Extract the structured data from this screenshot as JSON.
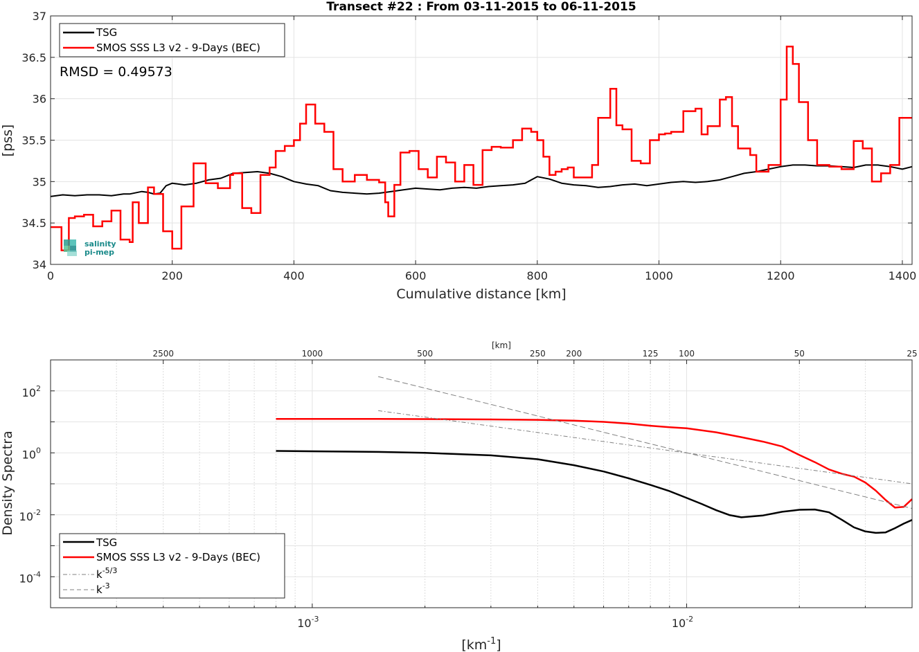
{
  "chart_data": [
    {
      "type": "line",
      "title": "Transect #22 : From 03-11-2015 to 06-11-2015",
      "xlabel": "Cumulative distance [km]",
      "ylabel": "[pss]",
      "xlim": [
        0,
        1416
      ],
      "ylim": [
        34,
        37
      ],
      "xticks": [
        0,
        200,
        400,
        600,
        800,
        1000,
        1200,
        1400
      ],
      "yticks": [
        34,
        34.5,
        35,
        35.5,
        36,
        36.5,
        37
      ],
      "xtick_labels": [
        "0",
        "200",
        "400",
        "600",
        "800",
        "1000",
        "1200",
        "1400"
      ],
      "ytick_labels": [
        "34",
        "34.5",
        "35",
        "35.5",
        "36",
        "36.5",
        "37"
      ],
      "grid": true,
      "legend_position": "top-left",
      "annotation": "RMSD = 0.49573",
      "series": [
        {
          "name": "TSG",
          "color": "#000000",
          "x": [
            0,
            20,
            40,
            60,
            80,
            100,
            120,
            130,
            150,
            160,
            170,
            180,
            190,
            200,
            210,
            220,
            240,
            260,
            280,
            300,
            320,
            340,
            360,
            380,
            400,
            420,
            440,
            450,
            460,
            480,
            500,
            520,
            540,
            560,
            580,
            600,
            620,
            640,
            660,
            680,
            700,
            720,
            740,
            760,
            780,
            800,
            820,
            840,
            860,
            880,
            900,
            920,
            940,
            960,
            980,
            1000,
            1020,
            1040,
            1060,
            1080,
            1100,
            1120,
            1140,
            1160,
            1180,
            1200,
            1220,
            1240,
            1260,
            1280,
            1300,
            1320,
            1340,
            1360,
            1380,
            1400,
            1416
          ],
          "y": [
            34.82,
            34.84,
            34.83,
            34.84,
            34.84,
            34.83,
            34.85,
            34.85,
            34.88,
            34.87,
            34.85,
            34.86,
            34.95,
            34.98,
            34.97,
            34.96,
            34.98,
            35.02,
            35.04,
            35.1,
            35.11,
            35.12,
            35.1,
            35.06,
            35.0,
            34.97,
            34.95,
            34.92,
            34.89,
            34.87,
            34.86,
            34.85,
            34.86,
            34.88,
            34.9,
            34.92,
            34.91,
            34.9,
            34.92,
            34.93,
            34.92,
            34.94,
            34.95,
            34.96,
            34.98,
            35.06,
            35.03,
            34.98,
            34.96,
            34.95,
            34.93,
            34.94,
            34.96,
            34.97,
            34.95,
            34.97,
            34.99,
            35.0,
            34.99,
            35.0,
            35.02,
            35.06,
            35.1,
            35.12,
            35.15,
            35.18,
            35.2,
            35.2,
            35.19,
            35.19,
            35.18,
            35.17,
            35.2,
            35.2,
            35.18,
            35.15,
            35.18
          ]
        },
        {
          "name": "SMOS SSS L3 v2 - 9-Days (BEC)",
          "color": "#ff0000",
          "x": [
            0,
            18,
            30,
            40,
            55,
            70,
            85,
            100,
            115,
            130,
            135,
            145,
            160,
            170,
            185,
            200,
            215,
            235,
            255,
            275,
            295,
            300,
            315,
            330,
            345,
            360,
            370,
            385,
            400,
            410,
            420,
            435,
            450,
            465,
            480,
            500,
            520,
            540,
            550,
            555,
            565,
            575,
            590,
            605,
            620,
            635,
            650,
            665,
            680,
            695,
            710,
            725,
            740,
            760,
            775,
            790,
            800,
            810,
            820,
            830,
            840,
            850,
            860,
            880,
            890,
            900,
            920,
            930,
            940,
            955,
            970,
            985,
            1000,
            1010,
            1020,
            1040,
            1060,
            1070,
            1080,
            1100,
            1110,
            1120,
            1130,
            1150,
            1160,
            1180,
            1200,
            1210,
            1220,
            1230,
            1245,
            1260,
            1280,
            1300,
            1320,
            1335,
            1350,
            1365,
            1380,
            1395,
            1410
          ],
          "y": [
            34.45,
            34.17,
            34.56,
            34.58,
            34.6,
            34.46,
            34.52,
            34.65,
            34.3,
            34.27,
            34.75,
            34.5,
            34.93,
            34.85,
            34.4,
            34.19,
            34.7,
            35.22,
            34.98,
            34.92,
            35.08,
            35.1,
            34.68,
            34.62,
            35.08,
            35.17,
            35.37,
            35.43,
            35.5,
            35.7,
            35.93,
            35.7,
            35.6,
            35.15,
            35.0,
            35.08,
            35.02,
            34.99,
            34.75,
            34.58,
            34.96,
            35.35,
            35.37,
            35.15,
            35.05,
            35.3,
            35.23,
            35.0,
            35.2,
            34.96,
            35.38,
            35.42,
            35.41,
            35.5,
            35.64,
            35.6,
            35.5,
            35.3,
            35.08,
            35.12,
            35.15,
            35.17,
            35.05,
            35.05,
            35.2,
            35.77,
            36.12,
            35.68,
            35.63,
            35.25,
            35.22,
            35.5,
            35.57,
            35.58,
            35.6,
            35.85,
            35.88,
            35.57,
            35.67,
            35.99,
            36.02,
            35.67,
            35.4,
            35.32,
            35.12,
            35.2,
            35.99,
            36.63,
            36.42,
            35.96,
            35.5,
            35.2,
            35.18,
            35.15,
            35.49,
            35.4,
            35.0,
            35.1,
            35.2,
            35.77,
            35.77
          ]
        }
      ]
    },
    {
      "type": "line",
      "title": "",
      "xlabel": "[km⁻¹]",
      "ylabel": "Density Spectra",
      "top_xlabel": "[km]",
      "xscale": "log",
      "yscale": "log",
      "xlim": [
        0.0002,
        0.04
      ],
      "ylim": [
        1e-05,
        1000
      ],
      "xtick_labels": [
        "10⁻³",
        "10⁻²"
      ],
      "xticks": [
        0.001,
        0.01
      ],
      "yticks": [
        0.0001,
        0.01,
        1,
        100
      ],
      "ytick_labels": [
        "10⁻⁴",
        "10⁻²",
        "10⁰",
        "10²"
      ],
      "top_ticks_km": [
        2500,
        1000,
        500,
        250,
        200,
        125,
        100,
        50,
        25
      ],
      "top_tick_labels": [
        "2500",
        "1000",
        "500",
        "250",
        "200",
        "125",
        "100",
        "50",
        "25"
      ],
      "grid": true,
      "legend_position": "bottom-left",
      "series": [
        {
          "name": "TSG",
          "color": "#000000",
          "x": [
            0.0008,
            0.001,
            0.0015,
            0.002,
            0.003,
            0.004,
            0.005,
            0.006,
            0.007,
            0.008,
            0.009,
            0.01,
            0.011,
            0.012,
            0.013,
            0.014,
            0.016,
            0.018,
            0.02,
            0.022,
            0.024,
            0.026,
            0.028,
            0.03,
            0.032,
            0.034,
            0.036,
            0.038,
            0.04
          ],
          "y": [
            1.15,
            1.12,
            1.07,
            1.0,
            0.83,
            0.62,
            0.4,
            0.25,
            0.15,
            0.092,
            0.058,
            0.035,
            0.022,
            0.014,
            0.0098,
            0.0083,
            0.0095,
            0.0125,
            0.0145,
            0.0148,
            0.012,
            0.0068,
            0.0039,
            0.0029,
            0.0026,
            0.0027,
            0.0037,
            0.0052,
            0.0068
          ]
        },
        {
          "name": "SMOS SSS L3 v2 - 9-Days (BEC)",
          "color": "#ff0000",
          "x": [
            0.0008,
            0.001,
            0.0015,
            0.002,
            0.003,
            0.004,
            0.005,
            0.006,
            0.007,
            0.008,
            0.009,
            0.01,
            0.012,
            0.014,
            0.016,
            0.018,
            0.02,
            0.022,
            0.024,
            0.026,
            0.028,
            0.03,
            0.032,
            0.034,
            0.036,
            0.038,
            0.04
          ],
          "y": [
            12.5,
            12.5,
            12.4,
            12.3,
            12.0,
            11.6,
            10.9,
            10.0,
            8.8,
            7.5,
            6.7,
            6.2,
            4.6,
            3.2,
            2.3,
            1.6,
            0.85,
            0.5,
            0.29,
            0.21,
            0.17,
            0.11,
            0.06,
            0.03,
            0.017,
            0.018,
            0.032
          ]
        },
        {
          "name": "k⁻⁵ᐟ³",
          "color": "#808080",
          "dash": "dash-dot",
          "x": [
            0.0015,
            0.04
          ],
          "y": [
            23,
            0.1
          ]
        },
        {
          "name": "k⁻³",
          "color": "#808080",
          "dash": "dash",
          "x": [
            0.0015,
            0.04
          ],
          "y": [
            290,
            0.016
          ]
        }
      ]
    }
  ],
  "legend_labels": {
    "tsg": "TSG",
    "smos": "SMOS SSS L3 v2 - 9-Days (BEC)",
    "k53_base": "k",
    "k53_exp": "-5/3",
    "k3_base": "k",
    "k3_exp": "-3"
  },
  "tick_labels_log": {
    "x_base": "10",
    "x_exp_1": "-3",
    "x_exp_2": "-2",
    "y_base": "10",
    "y_exp": [
      "-4",
      "-2",
      "0",
      "2"
    ]
  },
  "bottom_xlabel": {
    "base": "[km",
    "exp": "-1",
    "end": "]"
  },
  "logo": {
    "line1": "salinity",
    "line2": "pi-mep",
    "color": "#1a8a8a"
  }
}
